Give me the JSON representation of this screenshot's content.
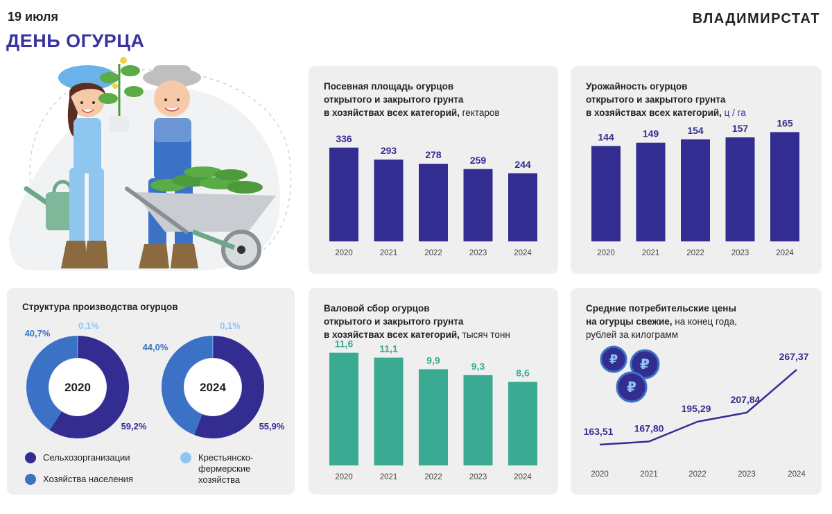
{
  "header": {
    "date": "19 июля",
    "title": "ДЕНЬ ОГУРЦА",
    "brand": "ВЛАДИМИРСТАТ"
  },
  "colors": {
    "navy": "#332c91",
    "blue": "#3b72c6",
    "light_blue": "#8ec4f2",
    "teal": "#3aaa93",
    "panel_bg": "#efefef"
  },
  "area_chart": {
    "title_bold": "Посевная площадь огурцов открытого и закрытого грунта в хозяйствах всех категорий,",
    "title_lines": [
      "Посевная площадь огурцов",
      "открытого и закрытого грунта",
      "в хозяйствах всех категорий,"
    ],
    "unit": " гектаров"
  },
  "yield_chart": {
    "title_lines": [
      "Урожайность огурцов",
      "открытого и закрытого грунта",
      "в хозяйствах всех категорий,"
    ],
    "unit": " ц / га"
  },
  "harvest_chart": {
    "title_lines": [
      "Валовой сбор огурцов",
      "открытого и закрытого грунта",
      "в хозяйствах всех категорий,"
    ],
    "unit": " тысяч тонн"
  },
  "price_chart": {
    "title_lines": [
      "Средние потребительские цены",
      "на огурцы свежие,"
    ],
    "unit_line1": " на конец года,",
    "unit_line2": "рублей за килограмм"
  },
  "structure": {
    "title": "Структура производства огурцов",
    "legend": [
      {
        "label": "Сельхозорганизации",
        "color": "#332c91"
      },
      {
        "label": "Хозяйства населения",
        "color": "#3b72c6"
      },
      {
        "label_line1": "Крестьянско-",
        "label_line2": "фермерские",
        "label_line3": "хозяйства",
        "color": "#8ec4f2"
      }
    ]
  },
  "chart_data": [
    {
      "type": "bar",
      "title": "Посевная площадь огурцов открытого и закрытого грунта в хозяйствах всех категорий, гектаров",
      "categories": [
        "2020",
        "2021",
        "2022",
        "2023",
        "2024"
      ],
      "values": [
        336,
        293,
        278,
        259,
        244
      ],
      "labels": [
        "336",
        "293",
        "278",
        "259",
        "244"
      ],
      "color": "#332c91",
      "ylim": [
        0,
        400
      ]
    },
    {
      "type": "bar",
      "title": "Урожайность огурцов открытого и закрытого грунта в хозяйствах всех категорий, ц / га",
      "categories": [
        "2020",
        "2021",
        "2022",
        "2023",
        "2024"
      ],
      "values": [
        144,
        149,
        154,
        157,
        165
      ],
      "labels": [
        "144",
        "149",
        "154",
        "157",
        "165"
      ],
      "color": "#332c91",
      "ylim": [
        0,
        200
      ]
    },
    {
      "type": "bar",
      "title": "Валовой сбор огурцов открытого и закрытого грунта в хозяйствах всех категорий, тысяч тонн",
      "categories": [
        "2020",
        "2021",
        "2022",
        "2023",
        "2024"
      ],
      "values": [
        11.6,
        11.1,
        9.9,
        9.3,
        8.6
      ],
      "labels": [
        "11,6",
        "11,1",
        "9,9",
        "9,3",
        "8,6"
      ],
      "color": "#3aaa93",
      "ylim": [
        0,
        14
      ]
    },
    {
      "type": "line",
      "title": "Средние потребительские цены на огурцы свежие, на конец года, рублей за килограмм",
      "categories": [
        "2020",
        "2021",
        "2022",
        "2023",
        "2024"
      ],
      "values": [
        163.51,
        167.8,
        195.29,
        207.84,
        267.37
      ],
      "labels": [
        "163,51",
        "167,80",
        "195,29",
        "207,84",
        "267,37"
      ],
      "color": "#332c91",
      "ylim": [
        150,
        275
      ]
    },
    {
      "type": "pie",
      "title": "Структура производства огурцов",
      "center_label": "2020",
      "categories": [
        "Сельхозорганизации",
        "Хозяйства населения",
        "Крестьянско-фермерские хозяйства"
      ],
      "values": [
        59.2,
        40.7,
        0.1
      ],
      "labels": [
        "59,2%",
        "40,7%",
        "0,1%"
      ]
    },
    {
      "type": "pie",
      "title": "Структура производства огурцов",
      "center_label": "2024",
      "categories": [
        "Сельхозорганизации",
        "Хозяйства населения",
        "Крестьянско-фермерские хозяйства"
      ],
      "values": [
        55.9,
        44.0,
        0.1
      ],
      "labels": [
        "55,9%",
        "44,0%",
        "0,1%"
      ]
    }
  ]
}
